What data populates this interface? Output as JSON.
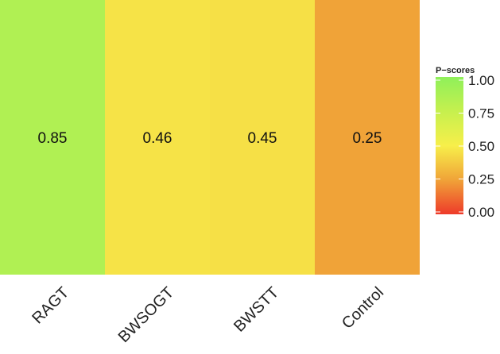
{
  "chart_data": {
    "type": "heatmap",
    "title": "",
    "xlabel": "",
    "ylabel": "",
    "categories": [
      "RAGT",
      "BWSOGT",
      "BWSTT",
      "Control"
    ],
    "values": [
      0.85,
      0.46,
      0.45,
      0.25
    ],
    "value_labels": [
      "0.85",
      "0.46",
      "0.45",
      "0.25"
    ],
    "legend": {
      "title": "P−scores",
      "placement": "right",
      "range": [
        0,
        1
      ],
      "ticks": [
        {
          "value": 1.0,
          "label": "1.00"
        },
        {
          "value": 0.75,
          "label": "0.75"
        },
        {
          "value": 0.5,
          "label": "0.50"
        },
        {
          "value": 0.25,
          "label": "0.25"
        },
        {
          "value": 0.0,
          "label": "0.00"
        }
      ],
      "colors": {
        "low": "#ee3a2a",
        "mid": "#f7ef4a",
        "high": "#8ff05a"
      }
    },
    "grid": false
  }
}
